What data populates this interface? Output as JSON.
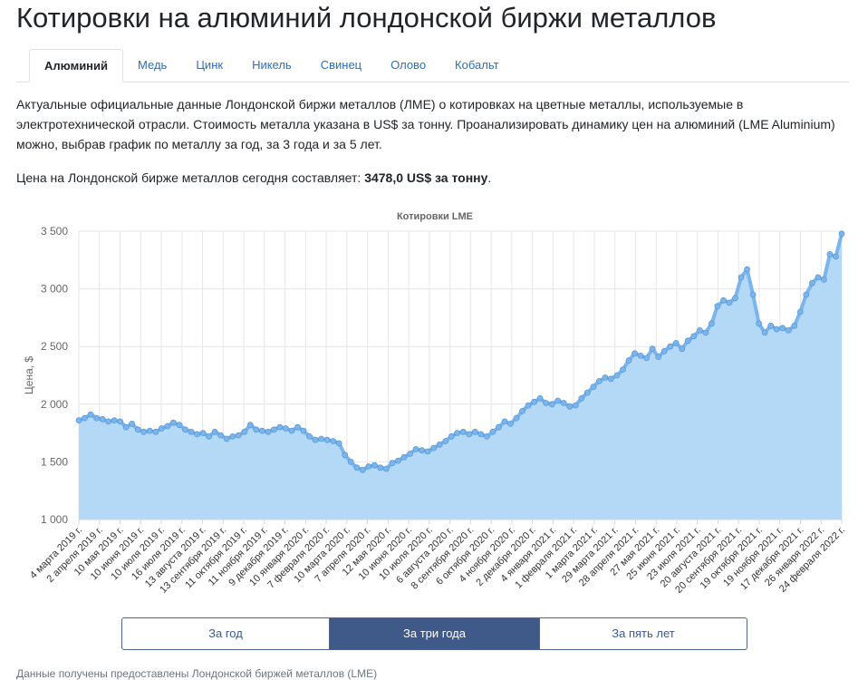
{
  "page": {
    "title": "Котировки на алюминий лондонской биржи металлов",
    "tabs": [
      "Алюминий",
      "Медь",
      "Цинк",
      "Никель",
      "Свинец",
      "Олово",
      "Кобальт"
    ],
    "intro": "Актуальные официальные данные Лондонской биржи металлов (ЛМЕ) о котировках на цветные металлы, используемые в электротехнической отрасли. Стоимость металла указана в US$ за тонну. Проанализировать динамику цен на алюминий (LME Aluminium) можно, выбрав график по металлу за год, за 3 года и за 5 лет.",
    "price_prefix": "Цена на Лондонской бирже металлов сегодня составляет:",
    "price_value": "3478,0 US$ за тонну",
    "price_suffix": ".",
    "buttons": [
      "За год",
      "За три года",
      "За пять лет"
    ],
    "active_button": "За три года",
    "footnote": "Данные получены предоставлены Лондонской биржей металлов (LME)"
  },
  "colors": {
    "line": "#7cb5ec",
    "area": "#b3d9f7",
    "grid": "#e6e6e6",
    "accent": "#3f5a88",
    "link": "#2a6fb8"
  },
  "chart_data": {
    "type": "area",
    "title": "Котировки LME",
    "ylabel": "Цена, $",
    "xlabel": "",
    "ylim": [
      1000,
      3500
    ],
    "yticks": [
      1000,
      1500,
      2000,
      2500,
      3000,
      3500
    ],
    "ytick_labels": [
      "1 000",
      "1 500",
      "2 000",
      "2 500",
      "3 000",
      "3 500"
    ],
    "grid": true,
    "legend": "none",
    "xtick_labels": [
      "4 марта 2019 г.",
      "2 апреля 2019 г.",
      "10 мая 2019 г.",
      "10 июня 2019 г.",
      "10 июля 2019 г.",
      "16 июля 2019 г.",
      "13 августа 2019 г.",
      "13 сентября 2019 г.",
      "11 октября 2019 г.",
      "11 ноября 2019 г.",
      "9 декабря 2019 г.",
      "10 января 2020 г.",
      "7 февраля 2020 г.",
      "10 марта 2020 г.",
      "7 апреля 2020 г.",
      "12 мая 2020 г.",
      "10 июня 2020 г.",
      "10 июля 2020 г.",
      "6 августа 2020 г.",
      "8 сентября 2020 г.",
      "6 октября 2020 г.",
      "4 ноября 2020 г.",
      "2 декабря 2020 г.",
      "4 января 2021 г.",
      "1 февраля 2021 г.",
      "1 марта 2021 г.",
      "29 марта 2021 г.",
      "28 апреля 2021 г.",
      "27 мая 2021 г.",
      "25 июня 2021 г.",
      "23 июля 2021 г.",
      "20 августа 2021 г.",
      "20 сентября 2021 г.",
      "19 октября 2021 г.",
      "19 ноября 2021 г.",
      "17 декабря 2021 г.",
      "26 января 2022 г.",
      "24 февраля 2022 г."
    ],
    "series": [
      {
        "values": [
          1860,
          1880,
          1910,
          1880,
          1870,
          1850,
          1860,
          1850,
          1800,
          1830,
          1780,
          1760,
          1770,
          1760,
          1790,
          1810,
          1840,
          1820,
          1780,
          1760,
          1740,
          1750,
          1720,
          1760,
          1730,
          1700,
          1720,
          1730,
          1760,
          1820,
          1780,
          1770,
          1760,
          1780,
          1800,
          1790,
          1770,
          1800,
          1770,
          1720,
          1690,
          1700,
          1690,
          1680,
          1660,
          1560,
          1500,
          1450,
          1430,
          1460,
          1470,
          1450,
          1440,
          1490,
          1510,
          1540,
          1570,
          1610,
          1600,
          1590,
          1620,
          1650,
          1680,
          1720,
          1750,
          1760,
          1740,
          1760,
          1740,
          1720,
          1760,
          1800,
          1850,
          1830,
          1880,
          1940,
          1990,
          2020,
          2050,
          2010,
          2000,
          2030,
          2010,
          1980,
          1990,
          2050,
          2100,
          2150,
          2200,
          2230,
          2220,
          2250,
          2300,
          2380,
          2440,
          2420,
          2400,
          2480,
          2410,
          2460,
          2500,
          2530,
          2480,
          2550,
          2590,
          2640,
          2620,
          2700,
          2850,
          2900,
          2880,
          2920,
          3100,
          3170,
          2950,
          2700,
          2620,
          2680,
          2650,
          2660,
          2640,
          2680,
          2800,
          2950,
          3050,
          3100,
          3080,
          3300,
          3280,
          3478
        ]
      }
    ]
  }
}
